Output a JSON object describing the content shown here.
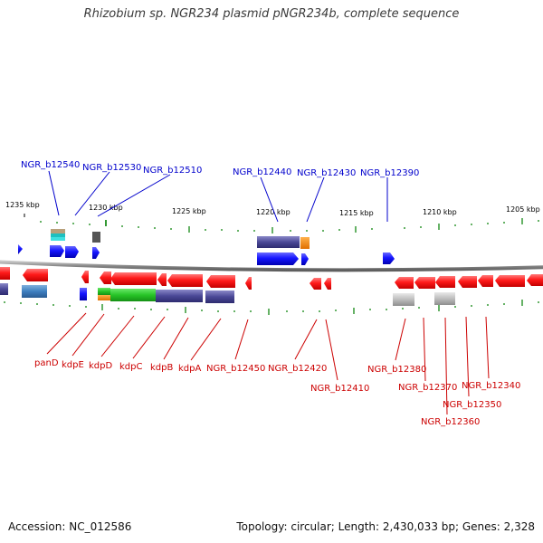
{
  "title": "Rhizobium sp. NGR234 plasmid pNGR234b, complete sequence",
  "footer": {
    "accession": "Accession: NC_012586",
    "topology": "Topology: circular; Length: 2,430,033 bp; Genes: 2,328"
  },
  "colors": {
    "forward_label": "#0000cc",
    "reverse_label": "#cc0000",
    "forward_gene": "#0000ff",
    "reverse_gene": "#ff0000",
    "tick": "#339933",
    "backbone": "#808080"
  },
  "kbp_labels": [
    "1235 kbp",
    "1230 kbp",
    "1225 kbp",
    "1220 kbp",
    "1215 kbp",
    "1210 kbp",
    "1205 kbp"
  ],
  "top_labels": [
    "NGR_b12540",
    "NGR_b12530",
    "NGR_b12510",
    "NGR_b12440",
    "NGR_b12430",
    "NGR_b12390"
  ],
  "bottom_labels": [
    "panD",
    "kdpE",
    "kdpD",
    "kdpC",
    "kdpB",
    "kdpA",
    "NGR_b12450",
    "NGR_b12420",
    "NGR_b12410",
    "NGR_b12380",
    "NGR_b12370",
    "NGR_b12360",
    "NGR_b12350",
    "NGR_b12340"
  ]
}
